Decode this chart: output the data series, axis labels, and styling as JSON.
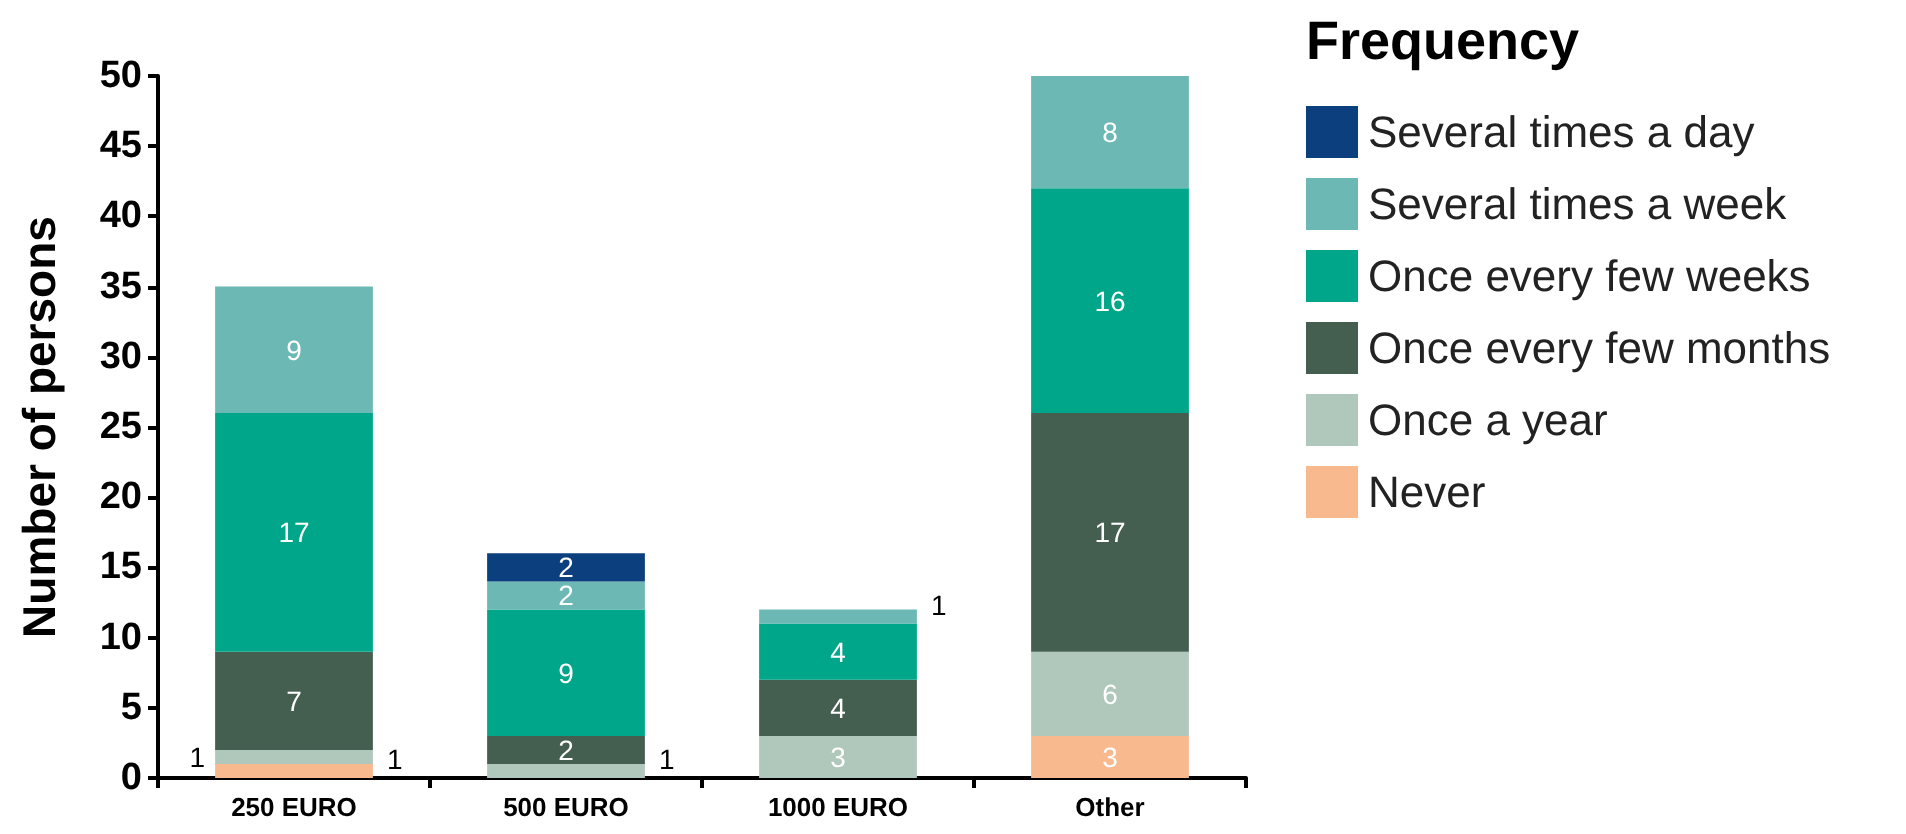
{
  "chart_data": {
    "type": "bar",
    "stacked": true,
    "ylabel": "Number of persons",
    "legend_title": "Frequency",
    "legend": "right",
    "grid": false,
    "categories": [
      "250 EURO",
      "500 EURO",
      "1000 EURO",
      "Other"
    ],
    "ylim": [
      0,
      50
    ],
    "yticks": [
      0,
      5,
      10,
      15,
      20,
      25,
      30,
      35,
      40,
      45,
      50
    ],
    "series": [
      {
        "name": "Never",
        "color": "#f9b98f",
        "values": [
          1,
          0,
          0,
          3
        ],
        "value_labels": [
          "1",
          null,
          null,
          "3"
        ]
      },
      {
        "name": "Once a year",
        "color": "#b0c8bb",
        "values": [
          1,
          1,
          3,
          6
        ],
        "value_labels": [
          "1",
          "1",
          "3",
          "6"
        ]
      },
      {
        "name": "Once every few months",
        "color": "#445e50",
        "values": [
          7,
          2,
          4,
          17
        ],
        "value_labels": [
          "7",
          "2",
          "4",
          "17"
        ]
      },
      {
        "name": "Once every few weeks",
        "color": "#00a68a",
        "values": [
          17,
          9,
          4,
          16
        ],
        "value_labels": [
          "17",
          "9",
          "4",
          "16"
        ]
      },
      {
        "name": "Several times a week",
        "color": "#6cb8b4",
        "values": [
          9,
          2,
          1,
          8
        ],
        "value_labels": [
          "9",
          "2",
          "1",
          "8"
        ]
      },
      {
        "name": "Several times a day",
        "color": "#0b3f7e",
        "values": [
          0,
          2,
          0,
          0
        ],
        "value_labels": [
          null,
          "2",
          null,
          null
        ]
      }
    ]
  }
}
